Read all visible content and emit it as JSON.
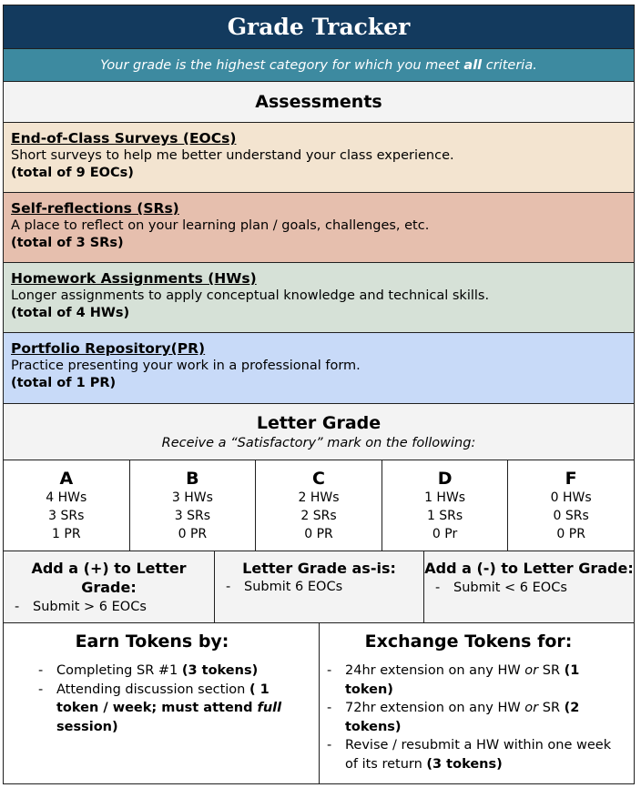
{
  "title": "Grade Tracker",
  "subtitle": {
    "before": "Your grade is the highest category for which you meet ",
    "emphasis": "all",
    "after": " criteria."
  },
  "assessments": {
    "heading": "Assessments",
    "categories": [
      {
        "title": "End-of-Class Surveys (EOCs)",
        "description": "Short surveys to help me better understand your class experience.",
        "total": "(total of 9 EOCs)",
        "color": "#f3e4d0"
      },
      {
        "title": "Self-reflections (SRs)",
        "description": "A place to reflect on your learning plan / goals, challenges, etc.",
        "total": "(total of 3 SRs)",
        "color": "#e6bfae"
      },
      {
        "title": "Homework Assignments (HWs)",
        "description": "Longer assignments to apply conceptual knowledge and technical skills.",
        "total": "(total of 4 HWs)",
        "color": "#d6e1d7"
      },
      {
        "title": "Portfolio Repository(PR)",
        "description": "Practice presenting your work in a professional form.",
        "total": "(total of 1 PR)",
        "color": "#c8daf8"
      }
    ]
  },
  "letter_grade": {
    "heading": "Letter Grade",
    "subheading": "Receive a “Satisfactory” mark on the following:",
    "grades": [
      {
        "letter": "A",
        "hws": "4 HWs",
        "srs": "3 SRs",
        "pr": "1 PR"
      },
      {
        "letter": "B",
        "hws": "3 HWs",
        "srs": "3 SRs",
        "pr": "0 PR"
      },
      {
        "letter": "C",
        "hws": "2 HWs",
        "srs": "2 SRs",
        "pr": "0 PR"
      },
      {
        "letter": "D",
        "hws": "1 HWs",
        "srs": "1 SRs",
        "pr": "0 Pr"
      },
      {
        "letter": "F",
        "hws": "0 HWs",
        "srs": "0 SRs",
        "pr": "0 PR"
      }
    ]
  },
  "modifiers": [
    {
      "heading": "Add a (+) to Letter Grade:",
      "item": "Submit > 6 EOCs"
    },
    {
      "heading": "Letter Grade as-is:",
      "item": "Submit 6 EOCs"
    },
    {
      "heading": "Add a (-) to Letter Grade:",
      "item": "Submit < 6 EOCs"
    }
  ],
  "earn_tokens": {
    "heading": "Earn Tokens by:",
    "items": [
      {
        "text": "Completing SR #1 ",
        "bold": "(3 tokens)"
      },
      {
        "text": "Attending discussion section ",
        "bold": "( 1 token / week; must attend ",
        "bold_italic": "full",
        "bold_end": " session)"
      }
    ]
  },
  "exchange_tokens": {
    "heading": "Exchange Tokens for:",
    "items": [
      {
        "text1": "24hr extension on any HW ",
        "italic": "or",
        "text2": " SR ",
        "bold": "(1 token)"
      },
      {
        "text1": "72hr extension on any HW ",
        "italic": "or",
        "text2": " SR ",
        "bold": "(2 tokens)"
      },
      {
        "text1": "Revise / resubmit a HW within one week of its return ",
        "bold": "(3 tokens)"
      }
    ]
  },
  "colors": {
    "title_bg": "#133a5e",
    "subtitle_bg": "#3d8aa0",
    "header_bg": "#f3f3f3"
  }
}
